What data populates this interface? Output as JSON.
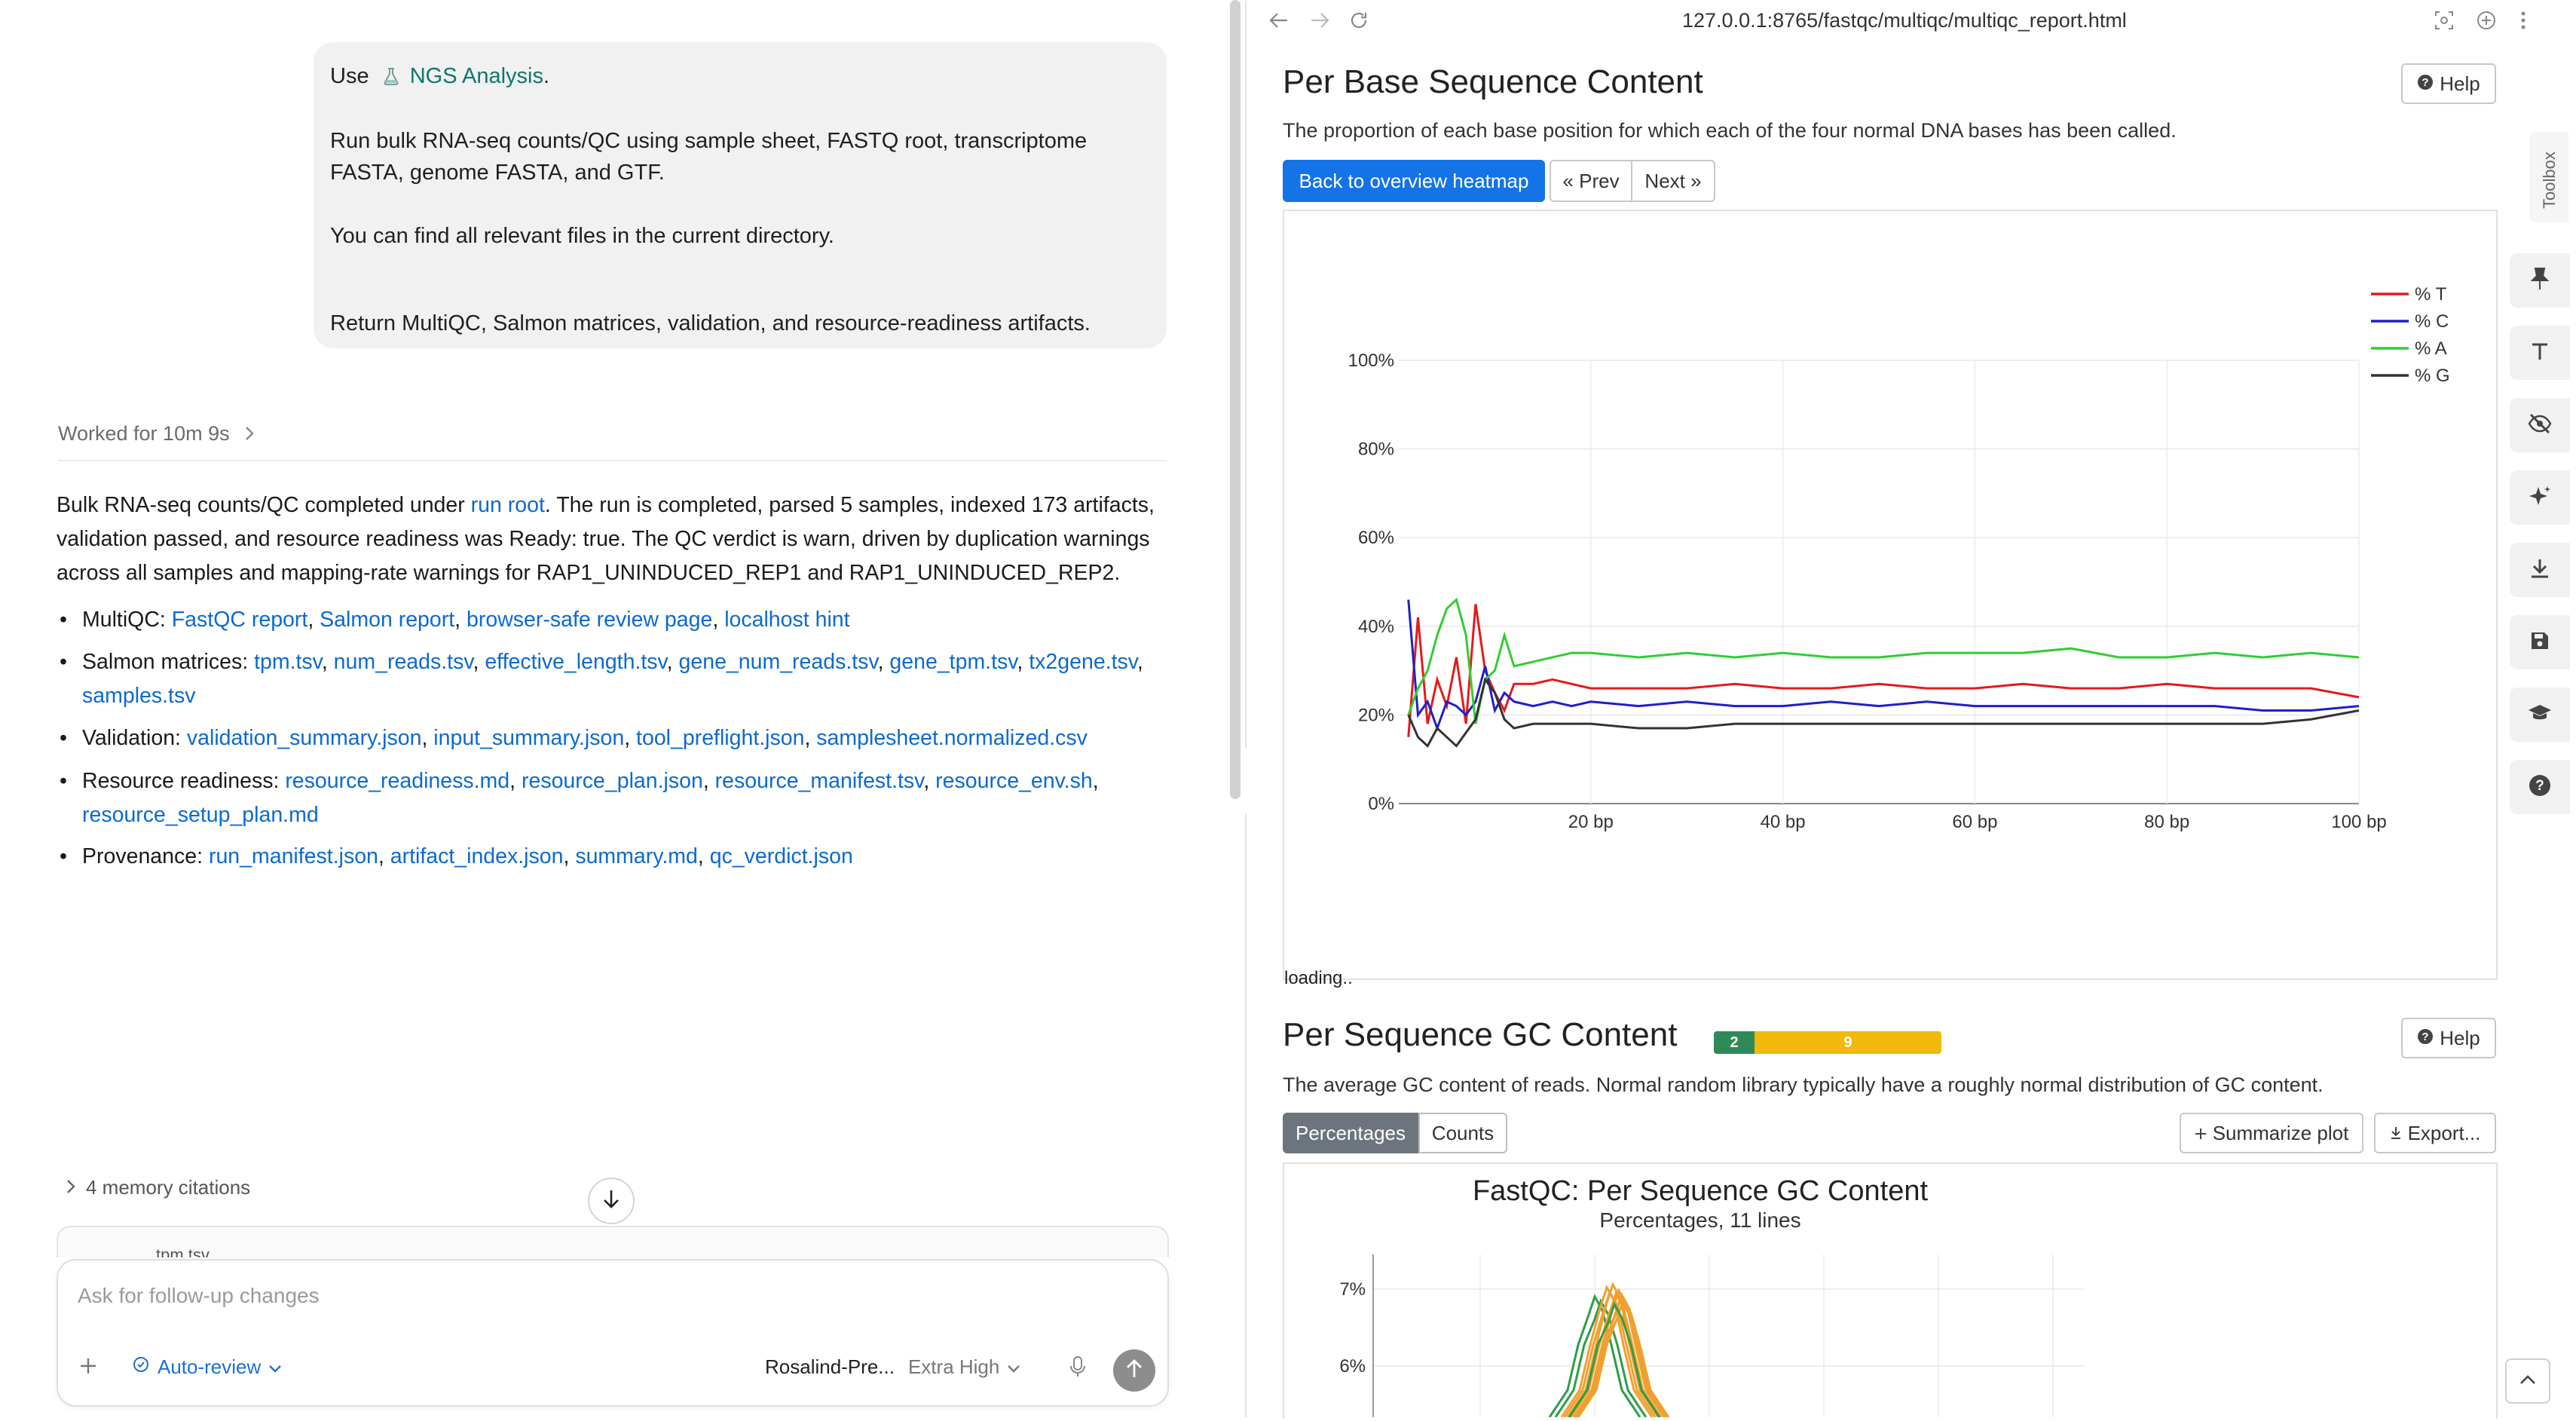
{
  "chat": {
    "prompt": {
      "use_prefix": "Use",
      "skill_icon": "flask-icon",
      "skill_name": "NGS Analysis",
      "use_suffix": ".",
      "line1": "Run bulk RNA-seq counts/QC using sample sheet, FASTQ root, transcriptome",
      "line2": "FASTA, genome FASTA, and GTF.",
      "line3": "You can find all relevant files in the current directory.",
      "line4": "Return MultiQC, Salmon matrices, validation, and resource-readiness artifacts."
    },
    "worked_for": "Worked for 10m 9s",
    "summary": {
      "l1_pre": "Bulk RNA-seq counts/QC completed under ",
      "l1_link": "run root",
      "l1_post": ". The run is completed, parsed 5 samples, indexed 173 artifacts,",
      "l2": "validation passed, and resource readiness was Ready: true. The QC verdict is warn, driven by duplication warnings",
      "l3": "across all samples and mapping-rate warnings for RAP1_UNINDUCED_REP1 and RAP1_UNINDUCED_REP2."
    },
    "bullets": [
      {
        "label": "MultiQC:",
        "links": [
          "FastQC report",
          "Salmon report",
          "browser-safe review page",
          "localhost hint"
        ]
      },
      {
        "label": "Salmon matrices:",
        "links": [
          "tpm.tsv",
          "num_reads.tsv",
          "effective_length.tsv",
          "gene_num_reads.tsv",
          "gene_tpm.tsv",
          "tx2gene.tsv"
        ],
        "links2": [
          "samples.tsv"
        ]
      },
      {
        "label": "Validation:",
        "links": [
          "validation_summary.json",
          "input_summary.json",
          "tool_preflight.json",
          "samplesheet.normalized.csv"
        ]
      },
      {
        "label": "Resource readiness:",
        "links": [
          "resource_readiness.md",
          "resource_plan.json",
          "resource_manifest.tsv",
          "resource_env.sh"
        ],
        "links2": [
          "resource_setup_plan.md"
        ]
      },
      {
        "label": "Provenance:",
        "links": [
          "run_manifest.json",
          "artifact_index.json",
          "summary.md",
          "qc_verdict.json"
        ]
      }
    ],
    "memory_citations": "4 memory citations",
    "peek_file": "tpm.tsv",
    "composer": {
      "placeholder": "Ask for follow-up changes",
      "auto_review": "Auto-review",
      "model": "Rosalind-Pre...",
      "effort": "Extra High"
    }
  },
  "browser": {
    "url": "127.0.0.1:8765/fastqc/multiqc/multiqc_report.html",
    "section1": {
      "title": "Per Base Sequence Content",
      "help": "Help",
      "description": "The proportion of each base position for which each of the four normal DNA bases has been called.",
      "back_button": "Back to overview heatmap",
      "prev_button": "« Prev",
      "next_button": "Next »",
      "loading": "loading.."
    },
    "section2": {
      "title": "Per Sequence GC Content",
      "help": "Help",
      "status_pass": "2",
      "status_warn": "9",
      "description": "The average GC content of reads. Normal random library typically have a roughly normal distribution of GC content.",
      "tab_percentages": "Percentages",
      "tab_counts": "Counts",
      "summarize": "Summarize plot",
      "export": "Export..."
    },
    "toolbox_label": "Toolbox"
  },
  "chart_data": [
    {
      "type": "line",
      "title": "",
      "xlabel": "",
      "ylabel": "",
      "xlim": [
        0,
        100
      ],
      "ylim": [
        0,
        100
      ],
      "y_ticks": [
        "0%",
        "20%",
        "40%",
        "60%",
        "80%",
        "100%"
      ],
      "x_ticks": [
        "20 bp",
        "40 bp",
        "60 bp",
        "80 bp",
        "100 bp"
      ],
      "legend_position": "top-right",
      "x": [
        1,
        2,
        3,
        4,
        5,
        6,
        7,
        8,
        9,
        10,
        11,
        12,
        14,
        16,
        18,
        20,
        25,
        30,
        35,
        40,
        45,
        50,
        55,
        60,
        65,
        70,
        75,
        80,
        85,
        90,
        95,
        100
      ],
      "series": [
        {
          "name": "% T",
          "color": "#e31a1c",
          "values": [
            15,
            42,
            18,
            28,
            22,
            33,
            18,
            45,
            30,
            25,
            21,
            27,
            27,
            28,
            27,
            26,
            26,
            26,
            27,
            26,
            26,
            27,
            26,
            26,
            27,
            26,
            26,
            27,
            26,
            26,
            26,
            24
          ]
        },
        {
          "name": "% C",
          "color": "#1f1fcc",
          "values": [
            46,
            20,
            23,
            17,
            23,
            22,
            20,
            23,
            31,
            21,
            25,
            23,
            22,
            23,
            22,
            23,
            22,
            23,
            22,
            22,
            23,
            22,
            23,
            22,
            22,
            22,
            22,
            22,
            22,
            21,
            21,
            22
          ]
        },
        {
          "name": "% A",
          "color": "#33cc33",
          "values": [
            20,
            26,
            30,
            38,
            44,
            46,
            38,
            18,
            28,
            30,
            38,
            31,
            32,
            33,
            34,
            34,
            33,
            34,
            33,
            34,
            33,
            33,
            34,
            34,
            34,
            35,
            33,
            33,
            34,
            33,
            34,
            33
          ]
        },
        {
          "name": "% G",
          "color": "#333333",
          "values": [
            20,
            15,
            13,
            17,
            15,
            13,
            16,
            19,
            28,
            25,
            19,
            17,
            18,
            18,
            18,
            18,
            17,
            17,
            18,
            18,
            18,
            18,
            18,
            18,
            18,
            18,
            18,
            18,
            18,
            18,
            19,
            21
          ]
        }
      ]
    },
    {
      "type": "line",
      "title": "FastQC: Per Sequence GC Content",
      "subtitle": "Percentages, 11 lines",
      "y_ticks": [
        "6%",
        "7%"
      ],
      "ylim": [
        5,
        7.6
      ],
      "series_count": 11,
      "series_colors": [
        "#2e9e47",
        "#f0a030"
      ]
    }
  ]
}
